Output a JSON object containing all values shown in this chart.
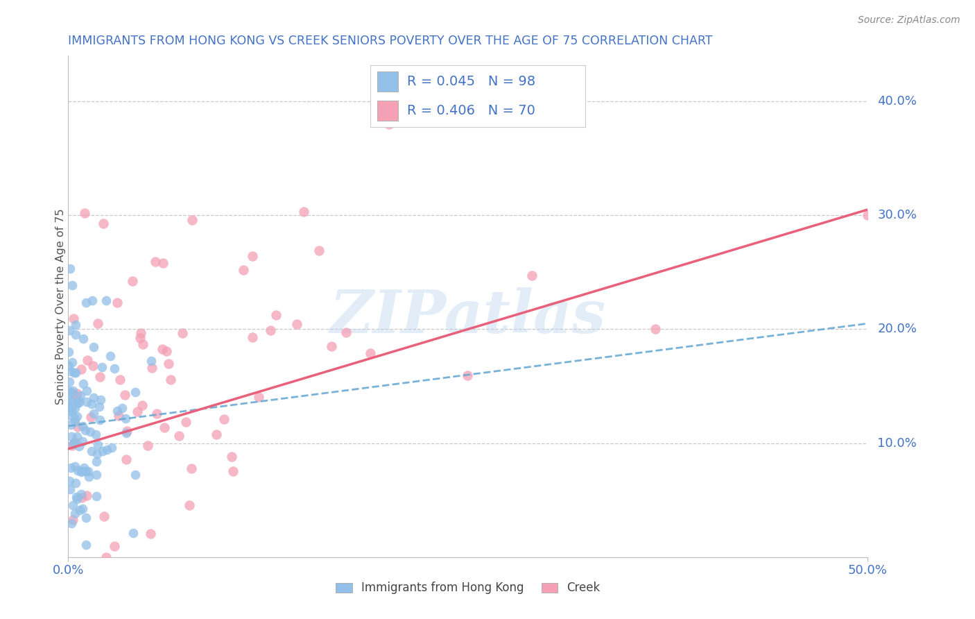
{
  "title": "IMMIGRANTS FROM HONG KONG VS CREEK SENIORS POVERTY OVER THE AGE OF 75 CORRELATION CHART",
  "source_text": "Source: ZipAtlas.com",
  "ylabel": "Seniors Poverty Over the Age of 75",
  "watermark": "ZIPatlas",
  "xlim": [
    0.0,
    0.5
  ],
  "ylim": [
    0.0,
    0.44
  ],
  "yticks": [
    0.1,
    0.2,
    0.3,
    0.4
  ],
  "ytick_labels": [
    "10.0%",
    "20.0%",
    "30.0%",
    "40.0%"
  ],
  "blue_color": "#92C0E8",
  "pink_color": "#F4A0B5",
  "blue_line_color": "#6AAAD4",
  "pink_line_color": "#E8607A",
  "title_color": "#4472C4",
  "axis_color": "#4472C4",
  "legend_r1": "R = 0.045",
  "legend_n1": "N = 98",
  "legend_r2": "R = 0.406",
  "legend_n2": "N = 70",
  "legend_label1": "Immigrants from Hong Kong",
  "legend_label2": "Creek",
  "blue_R": 0.045,
  "blue_N": 98,
  "pink_R": 0.406,
  "pink_N": 70,
  "blue_line_x0": 0.0,
  "blue_line_y0": 0.115,
  "blue_line_x1": 0.5,
  "blue_line_y1": 0.205,
  "pink_line_x0": 0.0,
  "pink_line_y0": 0.095,
  "pink_line_x1": 0.5,
  "pink_line_y1": 0.305,
  "background_color": "#FFFFFF",
  "grid_color": "#CCCCCC"
}
